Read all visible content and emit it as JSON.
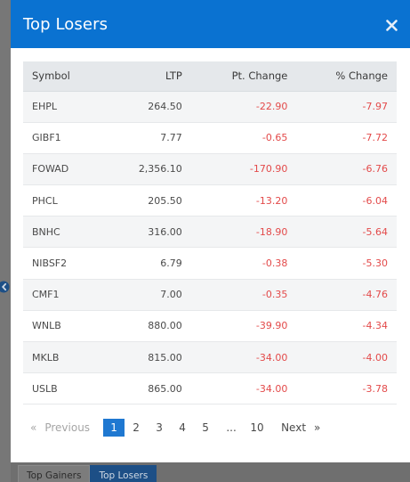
{
  "modal": {
    "title": "Top Losers"
  },
  "table": {
    "headers": {
      "symbol": "Symbol",
      "ltp": "LTP",
      "pt_change": "Pt. Change",
      "pct_change": "% Change"
    },
    "rows": [
      {
        "symbol": "EHPL",
        "ltp": "264.50",
        "pt_change": "-22.90",
        "pct_change": "-7.97"
      },
      {
        "symbol": "GIBF1",
        "ltp": "7.77",
        "pt_change": "-0.65",
        "pct_change": "-7.72"
      },
      {
        "symbol": "FOWAD",
        "ltp": "2,356.10",
        "pt_change": "-170.90",
        "pct_change": "-6.76"
      },
      {
        "symbol": "PHCL",
        "ltp": "205.50",
        "pt_change": "-13.20",
        "pct_change": "-6.04"
      },
      {
        "symbol": "BNHC",
        "ltp": "316.00",
        "pt_change": "-18.90",
        "pct_change": "-5.64"
      },
      {
        "symbol": "NIBSF2",
        "ltp": "6.79",
        "pt_change": "-0.38",
        "pct_change": "-5.30"
      },
      {
        "symbol": "CMF1",
        "ltp": "7.00",
        "pt_change": "-0.35",
        "pct_change": "-4.76"
      },
      {
        "symbol": "WNLB",
        "ltp": "880.00",
        "pt_change": "-39.90",
        "pct_change": "-4.34"
      },
      {
        "symbol": "MKLB",
        "ltp": "815.00",
        "pt_change": "-34.00",
        "pct_change": "-4.00"
      },
      {
        "symbol": "USLB",
        "ltp": "865.00",
        "pt_change": "-34.00",
        "pct_change": "-3.78"
      }
    ]
  },
  "pagination": {
    "prev_arrow": "«",
    "prev_label": "Previous",
    "pages": [
      "1",
      "2",
      "3",
      "4",
      "5"
    ],
    "ellipsis": "...",
    "last_page": "10",
    "next_label": "Next",
    "next_arrow": "»",
    "current": "1"
  },
  "background": {
    "tabs": [
      "Top Gainers",
      "Top Losers"
    ],
    "active_tab": "Top Losers"
  },
  "colors": {
    "header_blue": "#0a72d1",
    "negative_red": "#e34a4a",
    "active_page": "#1f78d1"
  },
  "icons": {
    "close": "close-icon",
    "left_nav": "chevron-left-icon"
  }
}
